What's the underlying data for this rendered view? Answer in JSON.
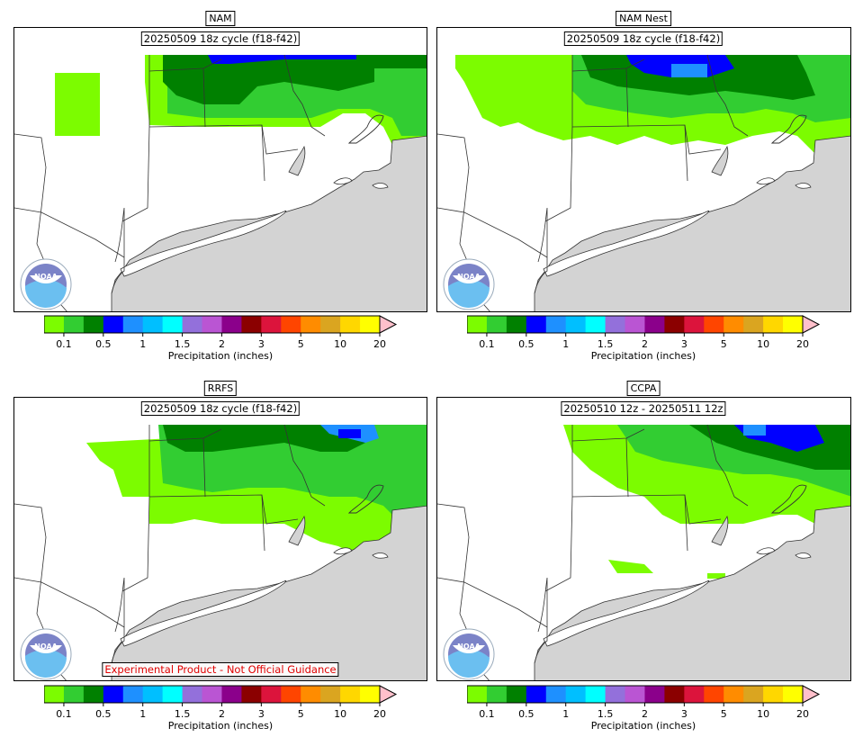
{
  "panels": [
    {
      "title": "NAM",
      "subtitle": "20250509 18z cycle (f18-f42)"
    },
    {
      "title": "NAM Nest",
      "subtitle": "20250509 18z cycle (f18-f42)"
    },
    {
      "title": "RRFS",
      "subtitle": "20250509 18z cycle (f18-f42)",
      "disclaimer": "Experimental Product - Not Official Guidance"
    },
    {
      "title": "CCPA",
      "subtitle": "20250510 12z - 20250511 12z"
    }
  ],
  "colorbar": {
    "title": "Precipitation (inches)",
    "tick_labels": [
      "0.1",
      "0.5",
      "1",
      "1.5",
      "2",
      "3",
      "5",
      "10",
      "20"
    ],
    "colors": [
      "#7cfc00",
      "#32cd32",
      "#008000",
      "#0000ff",
      "#1e90ff",
      "#00bfff",
      "#00ffff",
      "#9370db",
      "#ba55d3",
      "#8b008b",
      "#8b0000",
      "#dc143c",
      "#ff4500",
      "#ff8c00",
      "#daa520",
      "#ffd700",
      "#ffff00"
    ],
    "extend_color": "#ffc0cb"
  },
  "colors": {
    "land": "#ffffff",
    "water": "#d3d3d3",
    "border": "#000000"
  },
  "icons": {
    "logo": "noaa-logo"
  }
}
